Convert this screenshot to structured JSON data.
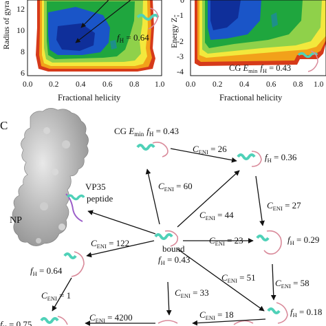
{
  "panel_top": {
    "left_axis": {
      "ylabel": "Radius of gyra",
      "yticks": [
        "12",
        "10",
        "8",
        "6"
      ],
      "xticks": [
        "0.0",
        "0.2",
        "0.4",
        "0.6",
        "0.8",
        "1.0"
      ],
      "xlabel": "Fractional helicity",
      "fh_label": "f",
      "fh_sub": "H",
      "fh_value": " = 0.64"
    },
    "right_axis": {
      "ylabel": "Energy Z-",
      "yticks": [
        "0",
        "-1",
        "-2",
        "-3",
        "-4"
      ],
      "xticks": [
        "0.0",
        "0.2",
        "0.4",
        "0.6",
        "0.8",
        "1.0"
      ],
      "xlabel": "Fractional helicity",
      "emin_prefix": "CG ",
      "emin_e": "E",
      "emin_sub": "min",
      "emin_fh": "f",
      "emin_fh_sub": "H",
      "emin_fh_value": " = 0.43"
    },
    "colors": {
      "outer": "#d63a1a",
      "orange": "#f2a11a",
      "yellow": "#f3e83c",
      "light_green": "#8fd14a",
      "green": "#1fa63e",
      "teal": "#1e8f8a",
      "blue": "#1a55c8",
      "dark_blue": "#0f2f9a"
    }
  },
  "panel_c": {
    "letter": "C",
    "np_label": "NP",
    "vp35_label": "VP35",
    "peptide_label": "peptide",
    "cg_prefix": "CG ",
    "cg_e": "E",
    "cg_sub": "min",
    "cg_fh": "f",
    "cg_fh_sub": "H",
    "cg_fh_value": " = 0.43",
    "bound_label": "bound",
    "bound_fh": "f",
    "bound_fh_sub": "H",
    "bound_fh_value": " = 0.43",
    "c": "C",
    "eni": "ENI",
    "edges": [
      {
        "value": " = 26"
      },
      {
        "value": " = 60"
      },
      {
        "value": " = 44"
      },
      {
        "value": " = 27"
      },
      {
        "value": " = 122"
      },
      {
        "value": " = 23"
      },
      {
        "value": " = 51"
      },
      {
        "value": " = 58"
      },
      {
        "value": " = 1"
      },
      {
        "value": " = 33"
      },
      {
        "value": " = 4200"
      },
      {
        "value": " = 18"
      }
    ],
    "fh_nodes": [
      {
        "value": " = 0.36"
      },
      {
        "value": " = 0.29"
      },
      {
        "value": " = 0.64"
      },
      {
        "value": " = 0.18"
      },
      {
        "value": " = 0.75"
      }
    ],
    "colors": {
      "helix": "#4fd1b8",
      "coil": "#d98a9a",
      "protein": "#b9b9b9",
      "purple": "#9b5ec9"
    }
  }
}
